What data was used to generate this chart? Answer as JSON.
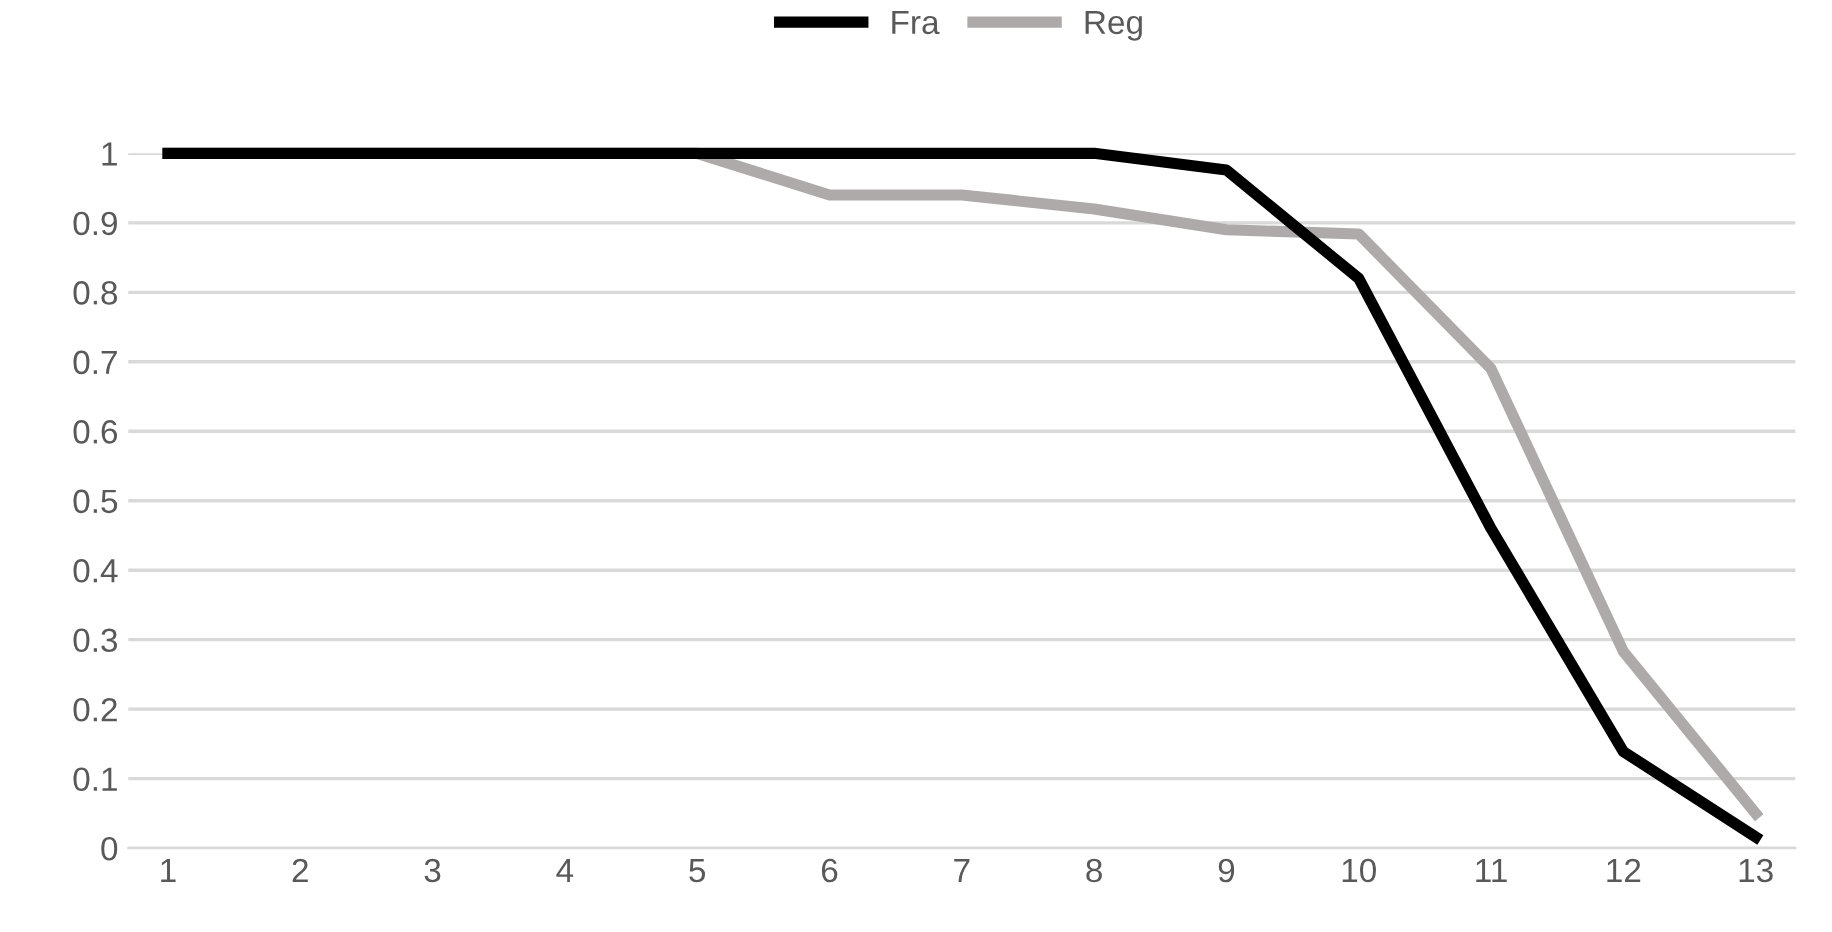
{
  "chart_data": {
    "type": "line",
    "categories": [
      "1",
      "2",
      "3",
      "4",
      "5",
      "6",
      "7",
      "8",
      "9",
      "10",
      "11",
      "12",
      "13"
    ],
    "series": [
      {
        "name": "Fra",
        "color": "#000000",
        "values": [
          1,
          1,
          1,
          1,
          1,
          1,
          1,
          1,
          0.976,
          0.82,
          0.46,
          0.139,
          0.016
        ]
      },
      {
        "name": "Reg",
        "color": "#aeaaaa",
        "values": [
          1,
          1,
          1,
          1,
          1,
          0.94,
          0.94,
          0.92,
          0.89,
          0.884,
          0.69,
          0.283,
          0.05
        ]
      }
    ],
    "ylim": [
      0,
      1
    ],
    "yticks": [
      0,
      0.1,
      0.2,
      0.3,
      0.4,
      0.5,
      0.6,
      0.7,
      0.8,
      0.9,
      1
    ],
    "grid": "y",
    "legend": "top",
    "marker": "none",
    "line_style": "solid"
  }
}
